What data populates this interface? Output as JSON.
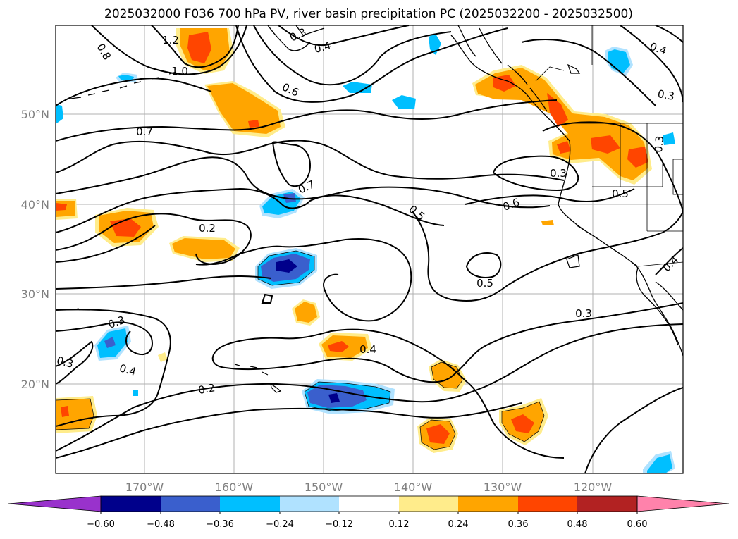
{
  "title": "2025032000 F036 700 hPa PV, river basin precipitation PC (2025032200 - 2025032500)",
  "map": {
    "lat_ticks": [
      "50°N",
      "40°N",
      "30°N",
      "20°N"
    ],
    "lon_ticks": [
      "170°W",
      "160°W",
      "150°W",
      "140°W",
      "130°W",
      "120°W"
    ],
    "gridlines": true
  },
  "contour_labels": [
    "1.2",
    "0.8",
    "0.3",
    "0.4",
    "1.0",
    "0.6",
    "0.4",
    "0.3",
    "0.7",
    "0.3",
    "0.3",
    "0.5",
    "0.7",
    "0.6",
    "0.5",
    "0.2",
    "0.4",
    "0.5",
    "0.3",
    "0.3",
    "0.4",
    "0.3",
    "0.4",
    "0.2"
  ],
  "colorbar": {
    "tick_labels": [
      "−0.60",
      "−0.48",
      "−0.36",
      "−0.24",
      "−0.12",
      "0.12",
      "0.24",
      "0.36",
      "0.48",
      "0.60"
    ],
    "colors": [
      "#9932cc",
      "#00008b",
      "#3a5fcd",
      "#00bfff",
      "#b0e2ff",
      "#ffffff",
      "#ffec8b",
      "#ffa500",
      "#ff4500",
      "#b22222",
      "#ff82ab"
    ]
  },
  "colors": {
    "pos_light": "#ffec8b",
    "pos_mid": "#ffa500",
    "pos_strong": "#ff4500",
    "neg_light": "#b0e2ff",
    "neg_mid": "#00bfff",
    "neg_strong": "#3a5fcd",
    "neg_max": "#00008b"
  }
}
